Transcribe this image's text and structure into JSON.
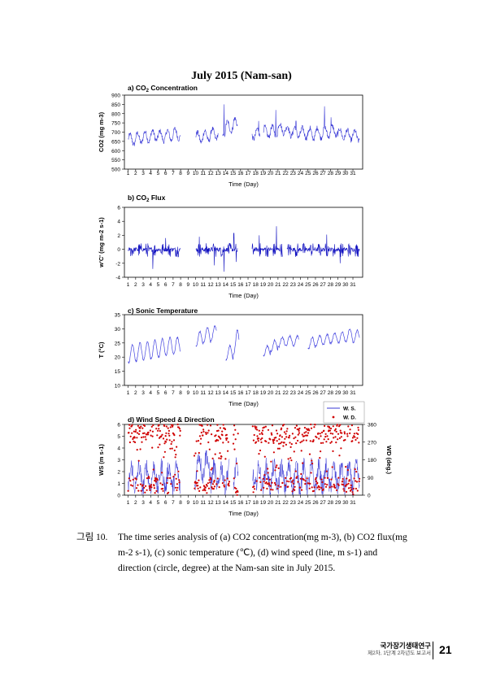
{
  "figure_title": "July 2015 (Nam-san)",
  "chart_data": [
    {
      "type": "line",
      "title": "a) CO2 Concentration",
      "ylabel": "CO2 (mg m-3)",
      "xlabel": "Time (Day)",
      "x_ticks": [
        1,
        2,
        3,
        4,
        5,
        6,
        7,
        8,
        9,
        10,
        11,
        12,
        13,
        14,
        15,
        16,
        17,
        18,
        19,
        20,
        21,
        22,
        23,
        24,
        25,
        26,
        27,
        28,
        29,
        30,
        31
      ],
      "ylim": [
        500,
        900
      ],
      "y_ticks": [
        500,
        550,
        600,
        650,
        700,
        750,
        800,
        850,
        900
      ],
      "gaps_days": [
        [
          8.0,
          10.0
        ],
        [
          13.0,
          13.6
        ],
        [
          15.6,
          17.5
        ],
        [
          18.6,
          19.0
        ]
      ],
      "daily_mean": [
        660,
        668,
        675,
        682,
        678,
        683,
        690,
        null,
        null,
        672,
        680,
        690,
        705,
        730,
        745,
        690,
        null,
        690,
        700,
        705,
        720,
        705,
        700,
        695,
        690,
        695,
        700,
        705,
        690,
        685,
        680
      ],
      "spikes": [
        [
          13.8,
          850
        ],
        [
          15.2,
          780
        ],
        [
          18.4,
          760
        ],
        [
          20.7,
          820
        ],
        [
          23.4,
          760
        ],
        [
          25.3,
          735
        ],
        [
          27.2,
          840
        ],
        [
          28.1,
          780
        ]
      ],
      "color": "#3a3ad6"
    },
    {
      "type": "line",
      "title": "b) CO2 Flux",
      "ylabel": "w'C' (mg m-2 s-1)",
      "xlabel": "Time (Day)",
      "x_ticks": [
        1,
        2,
        3,
        4,
        5,
        6,
        7,
        8,
        9,
        10,
        11,
        12,
        13,
        14,
        15,
        16,
        17,
        18,
        19,
        20,
        21,
        22,
        23,
        24,
        25,
        26,
        27,
        28,
        29,
        30,
        31
      ],
      "ylim": [
        -4,
        6
      ],
      "y_ticks": [
        -4,
        -2,
        0,
        2,
        4,
        6
      ],
      "gaps_days": [
        [
          8.0,
          10.0
        ],
        [
          15.6,
          17.5
        ],
        [
          21.6,
          22.2
        ]
      ],
      "spikes": [
        [
          13.8,
          4.0
        ],
        [
          13.8,
          -3.2
        ],
        [
          15.1,
          2.3
        ],
        [
          15.4,
          -1.8
        ],
        [
          20.8,
          3.3
        ],
        [
          18.5,
          2.0
        ],
        [
          10.5,
          1.8
        ],
        [
          6.0,
          1.6
        ],
        [
          4.3,
          -2.8
        ],
        [
          27.5,
          2.1
        ],
        [
          29.3,
          -2.0
        ],
        [
          12.5,
          -2.3
        ]
      ],
      "color": "#1010c0"
    },
    {
      "type": "line",
      "title": "c) Sonic Temperature",
      "ylabel": "T (°C)",
      "xlabel": "Time (Day)",
      "x_ticks": [
        1,
        2,
        3,
        4,
        5,
        6,
        7,
        8,
        9,
        10,
        11,
        12,
        13,
        14,
        15,
        16,
        17,
        18,
        19,
        20,
        21,
        22,
        23,
        24,
        25,
        26,
        27,
        28,
        29,
        30,
        31
      ],
      "ylim": [
        10,
        35
      ],
      "y_ticks": [
        10,
        15,
        20,
        25,
        30,
        35
      ],
      "gaps_days": [
        [
          8.0,
          10.0
        ],
        [
          12.8,
          13.8
        ],
        [
          15.8,
          18.3
        ],
        [
          23.8,
          24.5
        ]
      ],
      "daily_min": [
        18,
        18.5,
        19,
        19.5,
        20,
        20.5,
        21,
        null,
        null,
        24,
        25,
        26,
        null,
        19,
        21,
        null,
        null,
        null,
        20.5,
        22,
        23.5,
        24,
        24,
        null,
        23,
        24,
        24.5,
        25,
        25,
        25.5,
        25
      ],
      "daily_max": [
        24.5,
        25,
        25.5,
        26,
        26.5,
        27,
        27,
        null,
        null,
        29,
        30.5,
        31,
        null,
        24,
        29.5,
        null,
        null,
        null,
        24,
        26,
        27,
        27.5,
        27.5,
        null,
        27,
        27.5,
        28,
        28.5,
        29,
        30,
        29.5
      ],
      "color": "#4545e0"
    },
    {
      "type": "scatter",
      "title": "d) Wind Speed & Direction",
      "ylabel": "WS (m s-1)",
      "y2label": "WD (deg.)",
      "xlabel": "Time (Day)",
      "x_ticks": [
        1,
        2,
        3,
        4,
        5,
        6,
        7,
        8,
        9,
        10,
        11,
        12,
        13,
        14,
        15,
        16,
        17,
        18,
        19,
        20,
        21,
        22,
        23,
        24,
        25,
        26,
        27,
        28,
        29,
        30,
        31
      ],
      "ylim": [
        0,
        6
      ],
      "y_ticks": [
        0,
        1,
        2,
        3,
        4,
        5,
        6
      ],
      "y2lim": [
        0,
        360
      ],
      "y2_ticks": [
        0,
        90,
        180,
        270,
        360
      ],
      "legend": [
        "W. S.",
        "W. D."
      ],
      "legend_position": "top-right",
      "gaps_days": [
        [
          8.0,
          9.8
        ],
        [
          14.5,
          15.0
        ],
        [
          15.7,
          17.6
        ]
      ],
      "ws_color": "#3a3ad6",
      "wd_color": "#d00000"
    }
  ],
  "caption": {
    "number": "그림 10.",
    "text": "The time series analysis of (a) CO2 concentration(mg m-3), (b) CO2 flux(mg m-2 s-1), (c) sonic temperature (℃), (d) wind speed (line, m s-1) and direction (circle, degree) at the Nam-san site in July 2015."
  },
  "footer": {
    "title": "국가장기생태연구",
    "subtitle": "제2차, 1단계 2차년도 보고서",
    "page": "21"
  }
}
